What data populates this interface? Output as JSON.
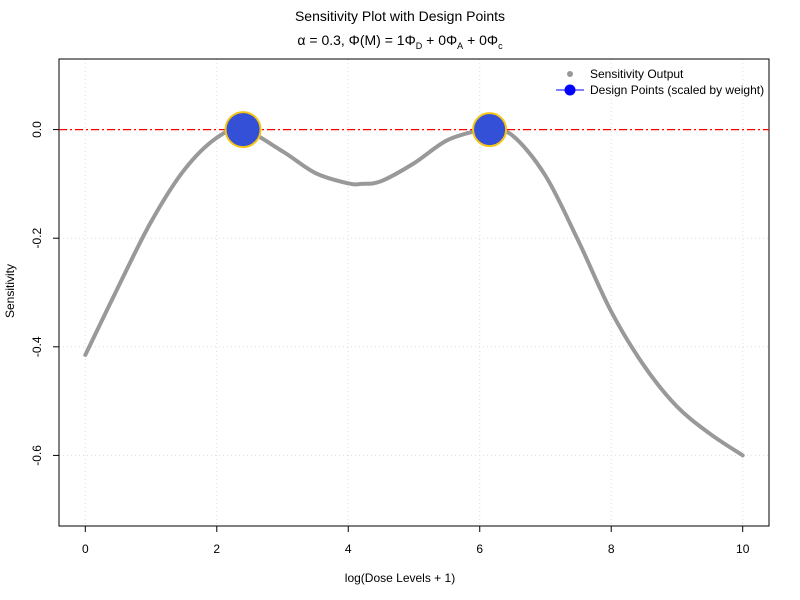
{
  "title": {
    "main": "Sensitivity Plot with Design Points",
    "alpha_label": "α = 0.3, Φ(M) = 1Φ",
    "sub_D": "D",
    "plus_A": " + 0Φ",
    "sub_A": "A",
    "plus_c": " + 0Φ",
    "sub_c": "c"
  },
  "colors": {
    "curve": "#999999",
    "reference_line": "#ff0000",
    "design_fill": "#3350d6",
    "design_stroke": "#f5c518",
    "grid": "#dddddd"
  },
  "chart_data": {
    "type": "line",
    "xlabel": "log(Dose Levels + 1)",
    "ylabel": "Sensitivity",
    "xlim": [
      -0.4,
      10.4
    ],
    "ylim": [
      -0.73,
      0.13
    ],
    "x_ticks": [
      0,
      2,
      4,
      6,
      8,
      10
    ],
    "y_ticks": [
      0.0,
      -0.2,
      -0.4,
      -0.6
    ],
    "y_tick_labels": [
      "0.0",
      "-0.2",
      "-0.4",
      "-0.6"
    ],
    "grid": true,
    "legend_position": "top-right",
    "reference_line": {
      "y": 0.0,
      "style": "dash-dot"
    },
    "series": [
      {
        "name": "Sensitivity Output",
        "x": [
          0,
          0.5,
          1,
          1.5,
          2,
          2.4,
          3,
          3.5,
          4,
          4.2,
          4.5,
          5,
          5.5,
          6,
          6.15,
          6.5,
          7,
          7.5,
          8,
          8.5,
          9,
          9.5,
          10
        ],
        "y": [
          -0.415,
          -0.29,
          -0.17,
          -0.075,
          -0.015,
          0.0,
          -0.04,
          -0.08,
          -0.099,
          -0.1,
          -0.095,
          -0.062,
          -0.02,
          -0.001,
          0.0,
          -0.011,
          -0.085,
          -0.205,
          -0.335,
          -0.435,
          -0.51,
          -0.56,
          -0.6
        ]
      },
      {
        "name": "Design Points (scaled by weight)",
        "x": [
          2.4,
          6.15
        ],
        "y": [
          0.0,
          0.0
        ],
        "weights": [
          0.55,
          0.45
        ]
      }
    ]
  }
}
